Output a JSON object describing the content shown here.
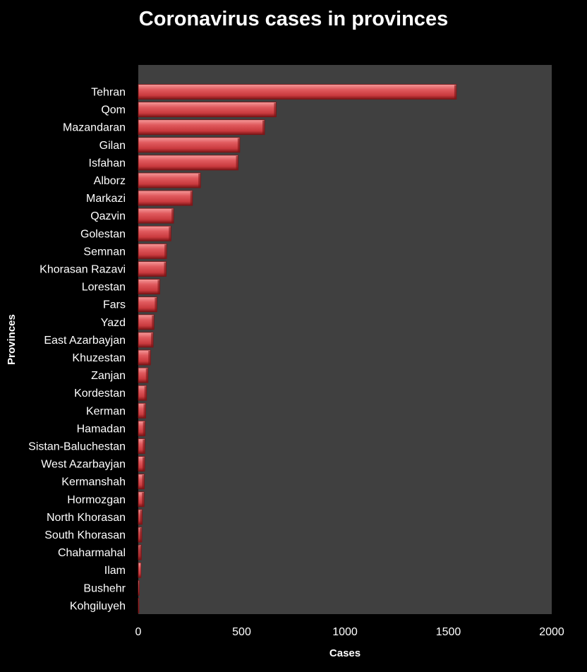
{
  "chart_data": {
    "type": "bar",
    "orientation": "horizontal",
    "title": "Coronavirus cases in provinces",
    "xlabel": "Cases",
    "ylabel": "Provinces",
    "xlim": [
      0,
      2000
    ],
    "xticks": [
      0,
      500,
      1000,
      1500,
      2000
    ],
    "grid": false,
    "legend": "none",
    "categories": [
      "Tehran",
      "Qom",
      "Mazandaran",
      "Gilan",
      "Isfahan",
      "Alborz",
      "Markazi",
      "Qazvin",
      "Golestan",
      "Semnan",
      "Khorasan Razavi",
      "Lorestan",
      "Fars",
      "Yazd",
      "East Azarbayjan",
      "Khuzestan",
      "Zanjan",
      "Kordestan",
      "Kerman",
      "Hamadan",
      "Sistan-Baluchestan",
      "West Azarbayjan",
      "Kermanshah",
      "Hormozgan",
      "North Khorasan",
      "South Khorasan",
      "Chaharmahal",
      "Ilam",
      "Bushehr",
      "Kohgiluyeh"
    ],
    "values": [
      1539,
      667,
      611,
      491,
      483,
      301,
      262,
      171,
      158,
      137,
      135,
      104,
      90,
      76,
      72,
      59,
      47,
      40,
      36,
      33,
      32,
      31,
      29,
      28,
      19,
      17,
      15,
      13,
      5,
      3
    ],
    "colors": {
      "bar": "#d9484c",
      "bar_light": "#f07a7a",
      "bar_dark": "#7a1416",
      "plot_bg": "#404040",
      "page_bg": "#000000",
      "text": "#ffffff"
    }
  }
}
